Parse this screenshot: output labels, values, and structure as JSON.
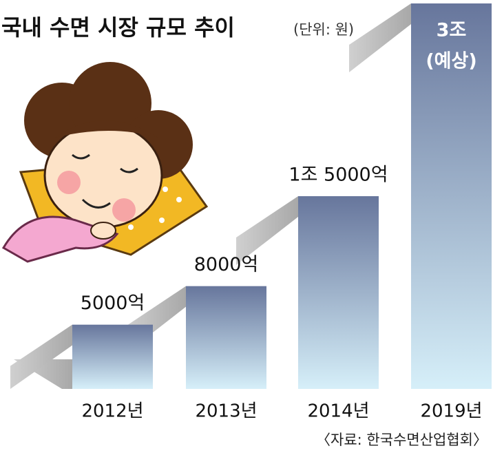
{
  "chart_data": {
    "type": "bar",
    "title": "국내 수면 시장 규모 추이",
    "subtitle": "(단위: 원)",
    "categories": [
      "2012년",
      "2013년",
      "2014년",
      "2019년"
    ],
    "values": [
      5000,
      8000,
      15000,
      30000
    ],
    "value_labels": [
      "5000억",
      "8000억",
      "1조 5000억",
      "3조"
    ],
    "annotation": "(예상)",
    "source": "〈자료: 한국수면산업협회〉"
  }
}
